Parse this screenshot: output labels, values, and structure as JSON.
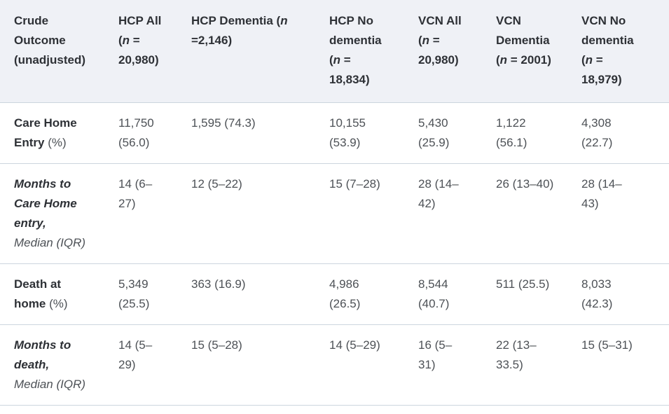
{
  "table": {
    "headers": [
      {
        "id": "crude-outcome",
        "segments": [
          {
            "t": "Crude\nOutcome\n(unadjusted)"
          }
        ]
      },
      {
        "id": "hcp-all",
        "segments": [
          {
            "t": "HCP All\n("
          },
          {
            "t": "n",
            "i": true
          },
          {
            "t": " =\n20,980)"
          }
        ]
      },
      {
        "id": "hcp-dementia",
        "segments": [
          {
            "t": "HCP Dementia ("
          },
          {
            "t": "n",
            "i": true
          },
          {
            "t": "\n=2,146)"
          }
        ]
      },
      {
        "id": "hcp-no-dementia",
        "segments": [
          {
            "t": "HCP No\ndementia\n("
          },
          {
            "t": "n",
            "i": true
          },
          {
            "t": " =\n18,834)"
          }
        ]
      },
      {
        "id": "vcn-all",
        "segments": [
          {
            "t": "VCN All\n("
          },
          {
            "t": "n",
            "i": true
          },
          {
            "t": " =\n20,980)"
          }
        ]
      },
      {
        "id": "vcn-dementia",
        "segments": [
          {
            "t": "VCN\nDementia\n("
          },
          {
            "t": "n",
            "i": true
          },
          {
            "t": " = 2001)"
          }
        ]
      },
      {
        "id": "vcn-no-dementia",
        "segments": [
          {
            "t": "VCN No\ndementia\n("
          },
          {
            "t": "n",
            "i": true
          },
          {
            "t": " =\n18,979)"
          }
        ]
      }
    ],
    "rows": [
      {
        "id": "care-home-entry",
        "label": [
          {
            "t": "Care Home\nEntry",
            "b": true
          },
          {
            "t": " (%)"
          }
        ],
        "values": [
          "11,750\n(56.0)",
          "1,595 (74.3)",
          "10,155\n(53.9)",
          "5,430\n(25.9)",
          "1,122\n(56.1)",
          "4,308\n(22.7)"
        ]
      },
      {
        "id": "months-to-care-home-entry",
        "label": [
          {
            "t": "Months to\nCare Home\nentry,",
            "b": true,
            "i": true
          },
          {
            "t": "\nMedian (IQR)",
            "i": true
          }
        ],
        "values": [
          "14 (6–\n27)",
          "12 (5–22)",
          "15 (7–28)",
          "28 (14–\n42)",
          "26 (13–40)",
          "28 (14–\n43)"
        ]
      },
      {
        "id": "death-at-home",
        "label": [
          {
            "t": "Death at\nhome",
            "b": true
          },
          {
            "t": " (%)"
          }
        ],
        "values": [
          "5,349\n(25.5)",
          "363 (16.9)",
          "4,986\n(26.5)",
          "8,544\n(40.7)",
          "511 (25.5)",
          "8,033\n(42.3)"
        ]
      },
      {
        "id": "months-to-death",
        "label": [
          {
            "t": "Months to\ndeath,",
            "b": true,
            "i": true
          },
          {
            "t": "\nMedian (IQR)",
            "i": true
          }
        ],
        "values": [
          "14 (5–\n29)",
          "15 (5–28)",
          "14 (5–29)",
          "16 (5–\n31)",
          "22 (13–\n33.5)",
          "15 (5–31)"
        ]
      }
    ]
  },
  "colors": {
    "header_bg": "#eff1f6",
    "divider": "#ccd5de",
    "heading_text": "#2e3136",
    "body_text": "#4d5156"
  }
}
